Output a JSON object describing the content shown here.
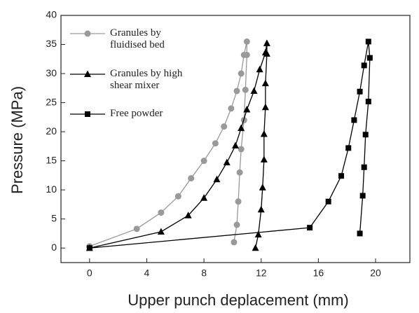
{
  "chart_data": {
    "type": "line",
    "xlabel": "Upper punch deplacement (mm)",
    "ylabel": "Pressure (MPa)",
    "xlim": [
      -2,
      22.4
    ],
    "xticks": [
      0,
      4,
      8,
      12,
      16,
      20
    ],
    "ylim": [
      -2.5,
      40
    ],
    "yticks": [
      0,
      5,
      10,
      15,
      20,
      25,
      30,
      35,
      40
    ],
    "legend": "upper left",
    "series": [
      {
        "name": "Granules by fluidised bed",
        "color": "#999999",
        "marker": "circle",
        "x": [
          0,
          3.3,
          5,
          6.2,
          7.1,
          8,
          8.8,
          9.4,
          9.9,
          10.3,
          10.6,
          10.8,
          11,
          11,
          10.9,
          10.8,
          10.6,
          10.5,
          10.4,
          10.3,
          10.1
        ],
        "values": [
          0.3,
          3.3,
          6.1,
          8.9,
          12,
          15,
          18,
          20.9,
          24,
          27,
          30,
          33.2,
          35.5,
          33.2,
          27.2,
          22,
          17,
          13,
          8,
          4,
          1
        ]
      },
      {
        "name": "Granules by high shear mixer",
        "color": "#000000",
        "marker": "triangle",
        "x": [
          0,
          5,
          6.9,
          8,
          8.9,
          9.6,
          10.2,
          10.6,
          11,
          11.5,
          11.9,
          12.3,
          12.4,
          12.4,
          12.3,
          12.3,
          12.2,
          12.2,
          12.1,
          12,
          11.8,
          11.6
        ],
        "values": [
          0,
          2.8,
          5.6,
          8.6,
          11.8,
          14.7,
          17.6,
          20.6,
          23.8,
          27,
          30.7,
          33.6,
          35.2,
          33.4,
          28.3,
          24.2,
          19.6,
          15.2,
          10.4,
          6.6,
          2.3,
          0
        ]
      },
      {
        "name": "Free powder",
        "color": "#000000",
        "marker": "square",
        "x": [
          0,
          15.4,
          16.7,
          17.6,
          18.1,
          18.5,
          18.9,
          19.2,
          19.5,
          19.6,
          19.5,
          19.3,
          19.2,
          19.1,
          18.9
        ],
        "values": [
          0,
          3.5,
          8,
          12.4,
          17.2,
          22,
          26.9,
          31.4,
          35.5,
          32.7,
          25.2,
          19.5,
          13.9,
          9,
          2.5
        ]
      }
    ]
  }
}
